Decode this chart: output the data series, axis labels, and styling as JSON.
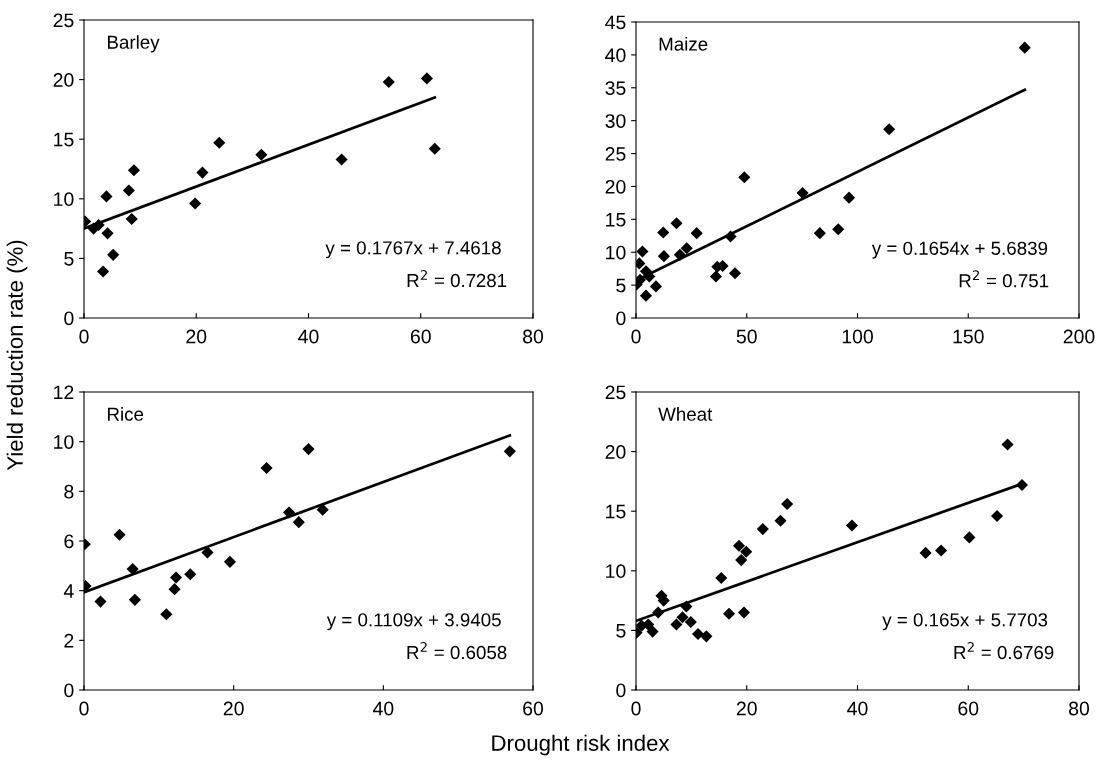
{
  "chart_data": [
    {
      "type": "scatter",
      "ylabel": "Yield reduction rate (%)",
      "xlim": [
        0,
        80
      ],
      "xticks": [
        0,
        20,
        40,
        60,
        80
      ],
      "ylim": [
        0,
        25
      ],
      "yticks": [
        0,
        5,
        10,
        15,
        20,
        25
      ],
      "grid": false,
      "annotations": [
        "Barley",
        "y = 0.1767x + 7.4618",
        "R$^{2}$ = 0.7281"
      ],
      "series": [
        {
          "marker": "diamond",
          "color": "#000000",
          "x": [
            0.2,
            1.7,
            2.6,
            4.0,
            4.2,
            3.4,
            5.2,
            8.0,
            8.5,
            8.9,
            19.8,
            21.1,
            24.1,
            31.6,
            45.9,
            54.3,
            61.1,
            62.5
          ],
          "values": [
            8.1,
            7.5,
            7.8,
            10.2,
            7.1,
            3.9,
            5.3,
            10.7,
            8.3,
            12.4,
            9.6,
            12.2,
            14.7,
            13.7,
            13.3,
            19.8,
            20.1,
            14.2
          ]
        },
        {
          "type": "line",
          "marker": "none",
          "color": "#000000",
          "x": [
            0,
            62.5
          ],
          "values": [
            7.5,
            18.5
          ]
        }
      ]
    },
    {
      "type": "scatter",
      "xlim": [
        0,
        200
      ],
      "xticks": [
        0,
        50,
        100,
        150,
        200
      ],
      "ylim": [
        0,
        45
      ],
      "yticks": [
        0,
        5,
        10,
        15,
        20,
        25,
        30,
        35,
        40,
        45
      ],
      "grid": false,
      "annotations": [
        "Maize",
        "y = 0.1654x + 5.6839",
        "R$^{2}$ = 0.751"
      ],
      "series": [
        {
          "marker": "diamond",
          "color": "#000000",
          "x": [
            0.3,
            1.5,
            2.9,
            1.8,
            4.5,
            4.5,
            6.0,
            9.0,
            12.3,
            12.6,
            18.3,
            19.8,
            22.9,
            27.4,
            36.1,
            36.7,
            39.1,
            42.7,
            44.7,
            48.9,
            75.2,
            83.0,
            91.3,
            96.2,
            114.3,
            175.5
          ],
          "values": [
            5.1,
            8.3,
            10.1,
            5.8,
            7.1,
            3.4,
            6.3,
            4.8,
            13.0,
            9.4,
            14.4,
            9.6,
            10.6,
            12.9,
            6.3,
            7.8,
            7.9,
            12.4,
            6.8,
            21.4,
            19.0,
            12.9,
            13.5,
            18.3,
            28.7,
            41.1
          ]
        },
        {
          "type": "line",
          "marker": "none",
          "color": "#000000",
          "x": [
            0,
            175.5
          ],
          "values": [
            5.7,
            34.7
          ]
        }
      ]
    },
    {
      "type": "scatter",
      "xlabel": "Drought risk index",
      "xlim": [
        0,
        60
      ],
      "xticks": [
        0,
        20,
        40,
        60
      ],
      "ylim": [
        0,
        12
      ],
      "yticks": [
        0,
        2,
        4,
        6,
        8,
        10,
        12
      ],
      "grid": false,
      "annotations": [
        "Rice",
        "y = 0.1109x + 3.9405",
        "R$^{2}$ = 0.6058"
      ],
      "series": [
        {
          "marker": "diamond",
          "color": "#000000",
          "x": [
            0.1,
            0.2,
            2.2,
            4.75,
            6.5,
            6.8,
            11.0,
            12.1,
            12.3,
            14.2,
            16.5,
            19.5,
            24.4,
            27.4,
            28.7,
            30.0,
            31.9,
            56.9
          ],
          "values": [
            5.87,
            4.19,
            3.56,
            6.25,
            4.87,
            3.63,
            3.05,
            4.06,
            4.53,
            4.66,
            5.54,
            5.16,
            8.94,
            7.15,
            6.76,
            9.7,
            7.26,
            9.61
          ]
        },
        {
          "type": "line",
          "marker": "none",
          "color": "#000000",
          "x": [
            0,
            56.9
          ],
          "values": [
            3.94,
            10.25
          ]
        }
      ]
    },
    {
      "type": "scatter",
      "xlim": [
        0,
        80
      ],
      "xticks": [
        0,
        20,
        40,
        60,
        80
      ],
      "ylim": [
        0,
        25
      ],
      "yticks": [
        0,
        5,
        10,
        15,
        20,
        25
      ],
      "grid": false,
      "annotations": [
        "Wheat",
        "y = 0.165x + 5.7703",
        "R$^{2}$ = 0.6769"
      ],
      "series": [
        {
          "marker": "diamond",
          "color": "#000000",
          "x": [
            0.1,
            1.0,
            2.2,
            3.0,
            4.0,
            4.6,
            5.0,
            7.3,
            8.4,
            9.1,
            9.9,
            11.2,
            12.7,
            15.4,
            16.8,
            18.6,
            19.0,
            19.5,
            19.9,
            22.9,
            26.1,
            27.3,
            39.0,
            52.3,
            55.1,
            60.2,
            65.2,
            67.1,
            69.7
          ],
          "values": [
            4.8,
            5.4,
            5.5,
            4.9,
            6.5,
            7.9,
            7.5,
            5.5,
            6.1,
            7.0,
            5.7,
            4.7,
            4.5,
            9.4,
            6.4,
            12.1,
            10.9,
            6.5,
            11.6,
            13.5,
            14.2,
            15.6,
            13.8,
            11.5,
            11.7,
            12.8,
            14.6,
            20.6,
            17.2
          ]
        },
        {
          "type": "line",
          "marker": "none",
          "color": "#000000",
          "x": [
            0,
            69.7
          ],
          "values": [
            5.8,
            17.3
          ]
        }
      ]
    }
  ]
}
